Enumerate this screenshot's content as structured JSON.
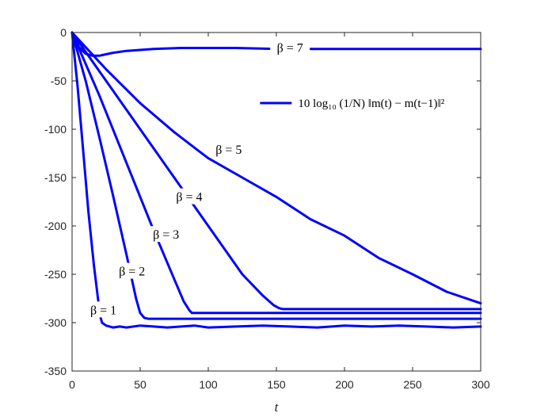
{
  "chart_data": {
    "type": "line",
    "title": "",
    "xlabel": "t",
    "ylabel": "",
    "xlim": [
      0,
      300
    ],
    "ylim": [
      -350,
      0
    ],
    "xticks": [
      0,
      50,
      100,
      150,
      200,
      250,
      300
    ],
    "yticks": [
      0,
      -50,
      -100,
      -150,
      -200,
      -250,
      -300,
      -350
    ],
    "grid": false,
    "legend": {
      "position": "top-right",
      "label": "10 log₁₀ (1/N) ‖m(t) − m(t−1)‖²"
    },
    "color": "#0000ff",
    "series": [
      {
        "name": "β = 1",
        "x": [
          0,
          4,
          8,
          12,
          16,
          19,
          21,
          22,
          25,
          30,
          35,
          40,
          50,
          60,
          70,
          80,
          90,
          100,
          120,
          140,
          160,
          180,
          200,
          220,
          240,
          260,
          280,
          300
        ],
        "y": [
          0,
          -55,
          -120,
          -185,
          -240,
          -275,
          -295,
          -300,
          -303,
          -305,
          -304,
          -305,
          -303,
          -304,
          -305,
          -304,
          -303,
          -305,
          -304,
          -303,
          -304,
          -305,
          -303,
          -304,
          -303,
          -304,
          -305,
          -304
        ]
      },
      {
        "name": "β = 2",
        "x": [
          0,
          10,
          20,
          30,
          40,
          47,
          50,
          53,
          56,
          60,
          80,
          100,
          150,
          200,
          250,
          300
        ],
        "y": [
          0,
          -50,
          -108,
          -168,
          -230,
          -275,
          -290,
          -295,
          -296,
          -296,
          -296,
          -296,
          -296,
          -296,
          -296,
          -296
        ]
      },
      {
        "name": "β = 3",
        "x": [
          0,
          20,
          40,
          60,
          75,
          82,
          86,
          88,
          92,
          100,
          150,
          200,
          250,
          300
        ],
        "y": [
          0,
          -65,
          -135,
          -205,
          -255,
          -278,
          -287,
          -290,
          -290,
          -290,
          -290,
          -290,
          -290,
          -290
        ]
      },
      {
        "name": "β = 4",
        "x": [
          0,
          25,
          50,
          75,
          100,
          125,
          140,
          148,
          152,
          155,
          160,
          200,
          250,
          300
        ],
        "y": [
          0,
          -50,
          -100,
          -150,
          -200,
          -250,
          -272,
          -282,
          -285,
          -286,
          -286,
          -286,
          -286,
          -286
        ]
      },
      {
        "name": "β = 5",
        "x": [
          0,
          25,
          50,
          75,
          100,
          125,
          150,
          175,
          200,
          225,
          250,
          275,
          300
        ],
        "y": [
          0,
          -38,
          -73,
          -103,
          -130,
          -150,
          -170,
          -193,
          -210,
          -233,
          -250,
          -268,
          -280
        ]
      },
      {
        "name": "β = 7",
        "x": [
          0,
          5,
          10,
          15,
          20,
          30,
          40,
          50,
          60,
          80,
          100,
          120,
          150,
          200,
          250,
          300
        ],
        "y": [
          0,
          -15,
          -22,
          -24,
          -24,
          -21,
          -19,
          -18,
          -17,
          -16,
          -16,
          -16,
          -17,
          -17,
          -17,
          -17
        ]
      }
    ],
    "annotations": [
      {
        "label": "β = 7",
        "x": 160,
        "y": -17
      },
      {
        "label": "β = 5",
        "x": 115,
        "y": -122
      },
      {
        "label": "β = 4",
        "x": 86,
        "y": -171
      },
      {
        "label": "β = 3",
        "x": 69,
        "y": -210
      },
      {
        "label": "β = 2",
        "x": 44,
        "y": -248
      },
      {
        "label": "β = 1",
        "x": 23,
        "y": -288
      }
    ]
  }
}
